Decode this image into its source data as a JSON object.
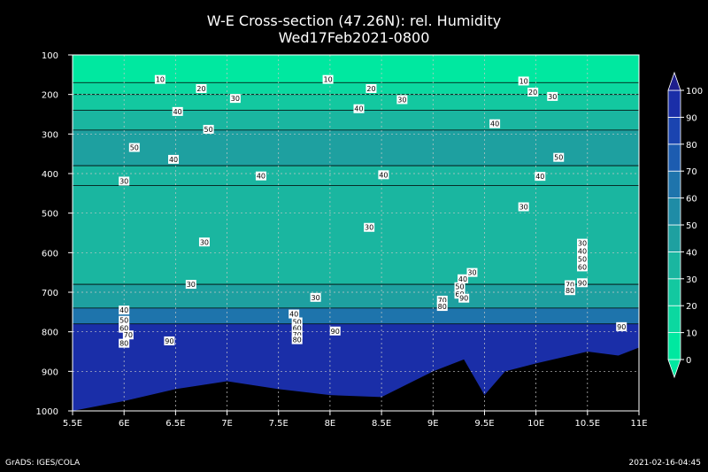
{
  "title": "W-E Cross-section (47.26N): rel. Humidity",
  "subtitle": "Wed17Feb2021-0800",
  "footer_left": "GrADS: IGES/COLA",
  "footer_right": "2021-02-16-04:45",
  "chart_data": {
    "type": "heatmap",
    "title": "W-E Cross-section (47.26N): rel. Humidity",
    "subtitle": "Wed17Feb2021-0800",
    "x_ticks": [
      "5.5E",
      "6E",
      "6.5E",
      "7E",
      "7.5E",
      "8E",
      "8.5E",
      "9E",
      "9.5E",
      "10E",
      "10.5E",
      "11E"
    ],
    "x_values": [
      5.5,
      6,
      6.5,
      7,
      7.5,
      8,
      8.5,
      9,
      9.5,
      10,
      10.5,
      11
    ],
    "xlim": [
      5.5,
      11
    ],
    "y_ticks": [
      "100",
      "200",
      "300",
      "400",
      "500",
      "600",
      "700",
      "800",
      "900",
      "1000"
    ],
    "y_values": [
      100,
      200,
      300,
      400,
      500,
      600,
      700,
      800,
      900,
      1000
    ],
    "ylim": [
      1000,
      100
    ],
    "grid": true,
    "colorbar": {
      "labels": [
        "0",
        "10",
        "20",
        "30",
        "40",
        "50",
        "60",
        "70",
        "80",
        "90",
        "100"
      ],
      "values": [
        0,
        10,
        20,
        30,
        40,
        50,
        60,
        70,
        80,
        90,
        100
      ],
      "colors": [
        "#00e8a0",
        "#0bd8a0",
        "#13c8a0",
        "#1ab6a0",
        "#1ea0a0",
        "#1f8ca6",
        "#1e74ac",
        "#1c5cb0",
        "#1a44b0",
        "#1a2ea8",
        "#1e1e8c"
      ]
    },
    "bands": [
      {
        "p_top": 100,
        "p_bottom": 170,
        "value": 5
      },
      {
        "p_top": 170,
        "p_bottom": 200,
        "value": 15
      },
      {
        "p_top": 200,
        "p_bottom": 240,
        "value": 25
      },
      {
        "p_top": 240,
        "p_bottom": 290,
        "value": 35
      },
      {
        "p_top": 290,
        "p_bottom": 380,
        "value": 45
      },
      {
        "p_top": 380,
        "p_bottom": 430,
        "value": 35
      },
      {
        "p_top": 430,
        "p_bottom": 680,
        "value": 30
      },
      {
        "p_top": 680,
        "p_bottom": 740,
        "value": 45
      },
      {
        "p_top": 740,
        "p_bottom": 780,
        "value": 65
      },
      {
        "p_top": 780,
        "p_bottom": 1000,
        "value": 92
      }
    ],
    "terrain": [
      {
        "lon": 5.5,
        "p": 1000
      },
      {
        "lon": 6.0,
        "p": 975
      },
      {
        "lon": 6.5,
        "p": 945
      },
      {
        "lon": 7.0,
        "p": 925
      },
      {
        "lon": 7.5,
        "p": 945
      },
      {
        "lon": 8.0,
        "p": 960
      },
      {
        "lon": 8.5,
        "p": 965
      },
      {
        "lon": 9.0,
        "p": 900
      },
      {
        "lon": 9.3,
        "p": 870
      },
      {
        "lon": 9.5,
        "p": 960
      },
      {
        "lon": 9.7,
        "p": 900
      },
      {
        "lon": 10.0,
        "p": 880
      },
      {
        "lon": 10.5,
        "p": 850
      },
      {
        "lon": 10.8,
        "p": 860
      },
      {
        "lon": 11.0,
        "p": 840
      }
    ],
    "contour_labels": [
      {
        "lon": 6.35,
        "p": 162,
        "text": "10"
      },
      {
        "lon": 6.75,
        "p": 185,
        "text": "20"
      },
      {
        "lon": 7.08,
        "p": 210,
        "text": "30"
      },
      {
        "lon": 6.52,
        "p": 243,
        "text": "40"
      },
      {
        "lon": 6.82,
        "p": 288,
        "text": "50"
      },
      {
        "lon": 6.1,
        "p": 334,
        "text": "50"
      },
      {
        "lon": 6.48,
        "p": 364,
        "text": "40"
      },
      {
        "lon": 6.0,
        "p": 419,
        "text": "30"
      },
      {
        "lon": 7.33,
        "p": 406,
        "text": "40"
      },
      {
        "lon": 7.98,
        "p": 162,
        "text": "10"
      },
      {
        "lon": 8.4,
        "p": 185,
        "text": "20"
      },
      {
        "lon": 8.7,
        "p": 213,
        "text": "30"
      },
      {
        "lon": 8.28,
        "p": 236,
        "text": "40"
      },
      {
        "lon": 8.52,
        "p": 403,
        "text": "40"
      },
      {
        "lon": 9.88,
        "p": 166,
        "text": "10"
      },
      {
        "lon": 9.97,
        "p": 194,
        "text": "20"
      },
      {
        "lon": 10.16,
        "p": 205,
        "text": "30"
      },
      {
        "lon": 9.6,
        "p": 274,
        "text": "40"
      },
      {
        "lon": 10.22,
        "p": 359,
        "text": "50"
      },
      {
        "lon": 10.04,
        "p": 407,
        "text": "40"
      },
      {
        "lon": 9.88,
        "p": 484,
        "text": "30"
      },
      {
        "lon": 8.38,
        "p": 536,
        "text": "30"
      },
      {
        "lon": 6.78,
        "p": 573,
        "text": "30"
      },
      {
        "lon": 6.65,
        "p": 680,
        "text": "30"
      },
      {
        "lon": 7.86,
        "p": 713,
        "text": "30"
      },
      {
        "lon": 9.38,
        "p": 650,
        "text": "30"
      },
      {
        "lon": 9.29,
        "p": 666,
        "text": "40"
      },
      {
        "lon": 9.26,
        "p": 686,
        "text": "50"
      },
      {
        "lon": 9.26,
        "p": 705,
        "text": "60"
      },
      {
        "lon": 9.3,
        "p": 715,
        "text": "90"
      },
      {
        "lon": 9.09,
        "p": 720,
        "text": "70"
      },
      {
        "lon": 9.09,
        "p": 736,
        "text": "80"
      },
      {
        "lon": 10.45,
        "p": 576,
        "text": "30"
      },
      {
        "lon": 10.45,
        "p": 596,
        "text": "40"
      },
      {
        "lon": 10.45,
        "p": 616,
        "text": "50"
      },
      {
        "lon": 10.45,
        "p": 636,
        "text": "60"
      },
      {
        "lon": 10.33,
        "p": 681,
        "text": "70"
      },
      {
        "lon": 10.33,
        "p": 696,
        "text": "80"
      },
      {
        "lon": 10.45,
        "p": 676,
        "text": "90"
      },
      {
        "lon": 10.83,
        "p": 787,
        "text": "90"
      },
      {
        "lon": 6.0,
        "p": 745,
        "text": "40"
      },
      {
        "lon": 6.0,
        "p": 771,
        "text": "50"
      },
      {
        "lon": 6.0,
        "p": 791,
        "text": "60"
      },
      {
        "lon": 6.04,
        "p": 808,
        "text": "70"
      },
      {
        "lon": 6.0,
        "p": 829,
        "text": "80"
      },
      {
        "lon": 6.44,
        "p": 823,
        "text": "90"
      },
      {
        "lon": 7.65,
        "p": 755,
        "text": "40"
      },
      {
        "lon": 7.68,
        "p": 775,
        "text": "50"
      },
      {
        "lon": 7.68,
        "p": 791,
        "text": "60"
      },
      {
        "lon": 7.68,
        "p": 807,
        "text": "70"
      },
      {
        "lon": 7.68,
        "p": 820,
        "text": "80"
      },
      {
        "lon": 8.05,
        "p": 798,
        "text": "90"
      }
    ]
  }
}
